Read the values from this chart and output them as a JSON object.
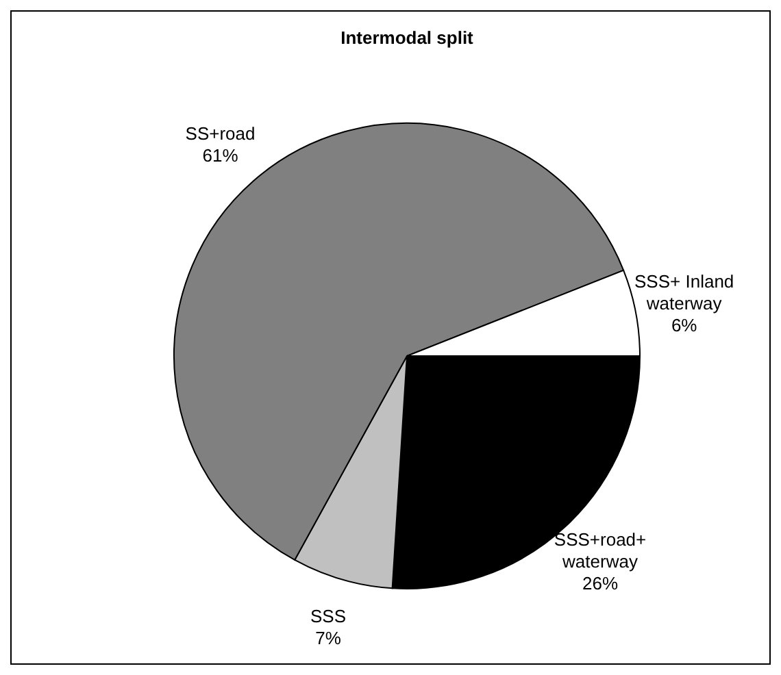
{
  "chart_data": {
    "type": "pie",
    "title": "Intermodal split",
    "categories": [
      "SSS+road+ waterway",
      "SSS",
      "SS+road",
      "SSS+ Inland waterway"
    ],
    "values": [
      26,
      7,
      61,
      6
    ],
    "colors": [
      "#000000",
      "#c0c0c0",
      "#808080",
      "#ffffff"
    ],
    "value_labels": [
      "26%",
      "7%",
      "61%",
      "6%"
    ]
  }
}
